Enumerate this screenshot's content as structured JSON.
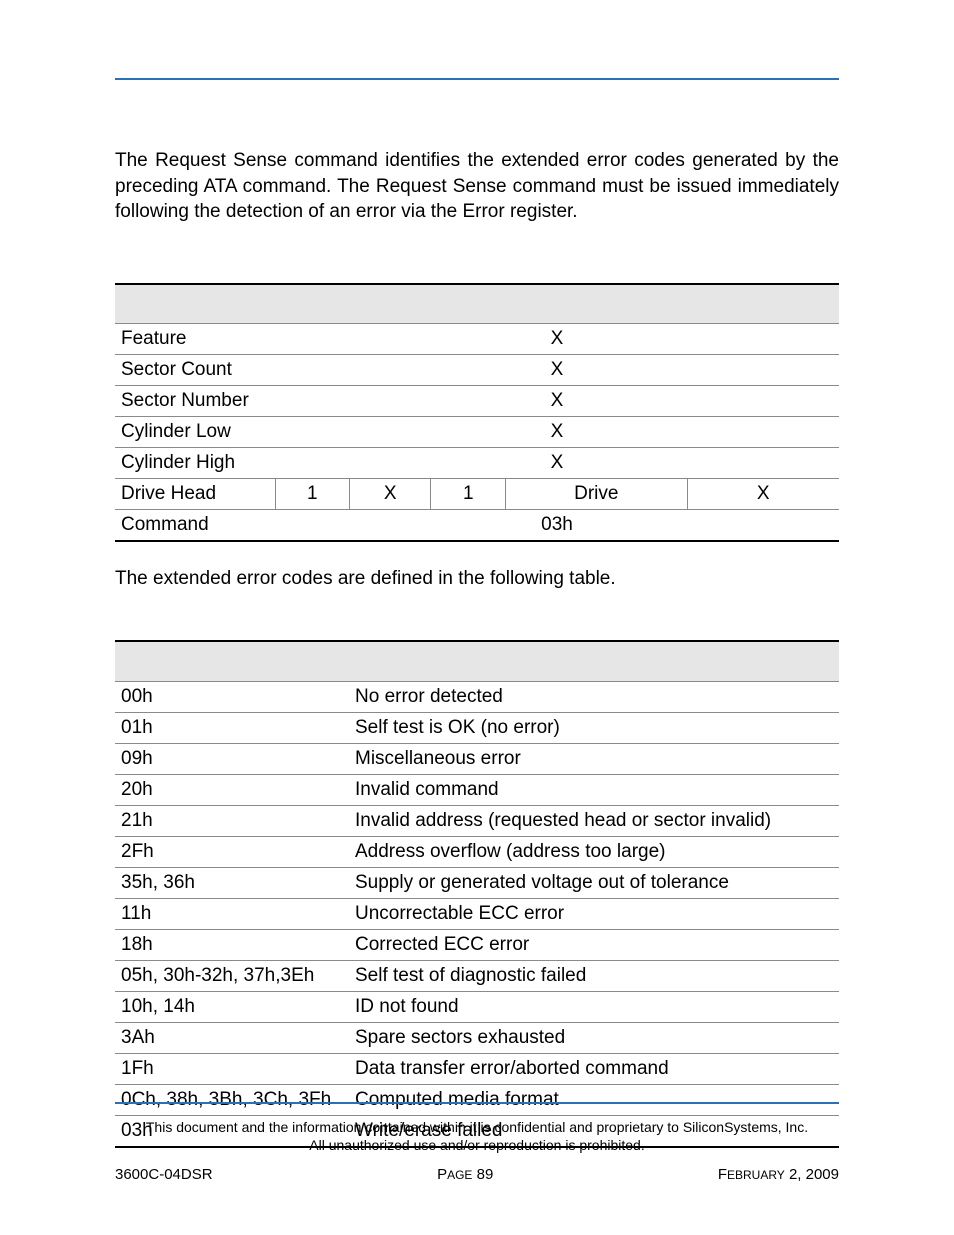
{
  "intro_text": "The Request Sense command identifies the extended error codes generated by the preceding ATA command. The Request Sense command must be issued immediately following the detection of an error via the Error register.",
  "table1": {
    "rows": [
      {
        "label": "Feature",
        "span": "X"
      },
      {
        "label": "Sector Count",
        "span": "X"
      },
      {
        "label": "Sector Number",
        "span": "X"
      },
      {
        "label": "Cylinder Low",
        "span": "X"
      },
      {
        "label": "Cylinder High",
        "span": "X"
      }
    ],
    "drive_head": {
      "label": "Drive Head",
      "c1": "1",
      "c2": "X",
      "c3": "1",
      "c4": "Drive",
      "c5": "X"
    },
    "command": {
      "label": "Command",
      "value": "03h"
    }
  },
  "mid_text": "The extended error codes are defined in the following table.",
  "table2": {
    "rows": [
      {
        "code": "00h",
        "desc": "No error detected"
      },
      {
        "code": "01h",
        "desc": "Self test is OK (no error)"
      },
      {
        "code": "09h",
        "desc": "Miscellaneous error"
      },
      {
        "code": "20h",
        "desc": "Invalid command"
      },
      {
        "code": "21h",
        "desc": "Invalid address (requested head or sector invalid)"
      },
      {
        "code": "2Fh",
        "desc": "Address overflow (address too large)"
      },
      {
        "code": "35h, 36h",
        "desc": "Supply or generated voltage out of tolerance"
      },
      {
        "code": "11h",
        "desc": "Uncorrectable ECC error"
      },
      {
        "code": "18h",
        "desc": "Corrected ECC error"
      },
      {
        "code": "05h, 30h-32h, 37h,3Eh",
        "desc": "Self test of diagnostic failed"
      },
      {
        "code": "10h, 14h",
        "desc": "ID not found"
      },
      {
        "code": "3Ah",
        "desc": "Spare sectors exhausted"
      },
      {
        "code": "1Fh",
        "desc": "Data transfer error/aborted command"
      },
      {
        "code": "0Ch, 38h, 3Bh, 3Ch, 3Fh",
        "desc": "Computed media format"
      },
      {
        "code": "03h",
        "desc": "Write/erase failed"
      }
    ]
  },
  "confidential_line1": "This document and the information contained within it is confidential and proprietary to SiliconSystems, Inc.",
  "confidential_line2": "All unauthorized use and/or reproduction is prohibited.",
  "footer": {
    "left": "3600C-04DSR",
    "center_prefix": "P",
    "center_rest": "AGE",
    "center_num": " 89",
    "right_prefix": "F",
    "right_rest": "EBRUARY",
    "right_tail": " 2, 2009"
  }
}
